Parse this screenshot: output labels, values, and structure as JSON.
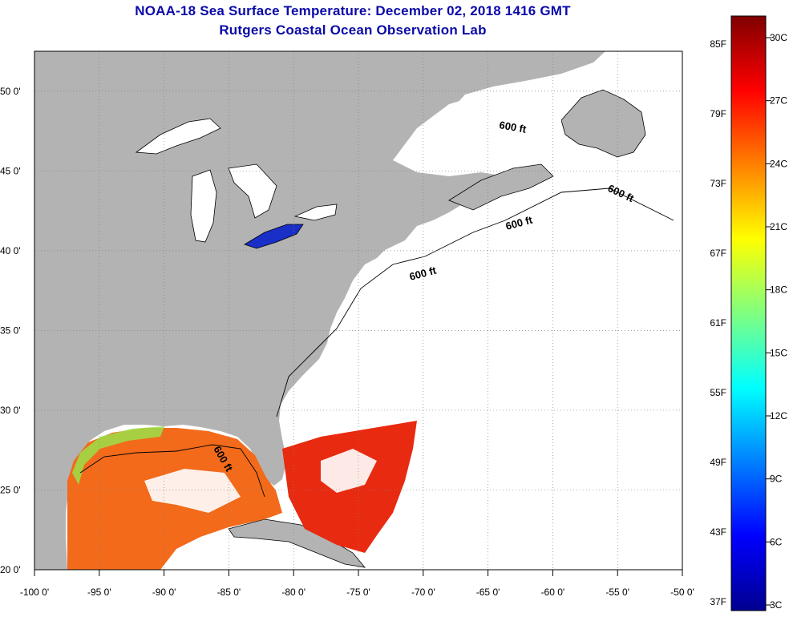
{
  "title": {
    "line1": "NOAA-18 Sea Surface Temperature:  December 02, 2018 1416 GMT",
    "line2": "Rutgers Coastal Ocean Observation Lab"
  },
  "map": {
    "lon_min": -100,
    "lon_max": -50,
    "lat_min": 20,
    "lat_max": 52.5,
    "lon_ticks": [
      {
        "value": -100,
        "label": "-100 0'"
      },
      {
        "value": -95,
        "label": "-95 0'"
      },
      {
        "value": -90,
        "label": "-90 0'"
      },
      {
        "value": -85,
        "label": "-85 0'"
      },
      {
        "value": -80,
        "label": "-80 0'"
      },
      {
        "value": -75,
        "label": "-75 0'"
      },
      {
        "value": -70,
        "label": "-70 0'"
      },
      {
        "value": -65,
        "label": "-65 0'"
      },
      {
        "value": -60,
        "label": "-60 0'"
      },
      {
        "value": -55,
        "label": "-55 0'"
      },
      {
        "value": -50,
        "label": "-50 0'"
      }
    ],
    "lat_ticks": [
      {
        "value": 50,
        "label": "50 0'"
      },
      {
        "value": 45,
        "label": "45 0'"
      },
      {
        "value": 40,
        "label": "40 0'"
      },
      {
        "value": 35,
        "label": "35 0'"
      },
      {
        "value": 30,
        "label": "30 0'"
      },
      {
        "value": 25,
        "label": "25 0'"
      },
      {
        "value": 20,
        "label": "20 0'"
      }
    ],
    "contour_labels": [
      "600 ft",
      "600 ft",
      "600 ft",
      "600 ft",
      "600 ft"
    ],
    "colors": {
      "land": "#b3b3b3",
      "ocean": "#ffffff",
      "grid": "#808080",
      "lake_erie": "#1a2fc8",
      "gulf_warm": "#f26a1a",
      "atlantic_warm": "#e82a10"
    }
  },
  "colorbar": {
    "fahrenheit_labels": [
      "85F",
      "79F",
      "73F",
      "67F",
      "61F",
      "55F",
      "49F",
      "43F",
      "37F"
    ],
    "celsius_labels": [
      "30C",
      "27C",
      "24C",
      "21C",
      "18C",
      "15C",
      "12C",
      "9C",
      "6C",
      "3C"
    ],
    "stops": [
      "#800000",
      "#ff0000",
      "#ff8000",
      "#ffff00",
      "#80ff80",
      "#00ffff",
      "#0080ff",
      "#0000ff",
      "#000090"
    ]
  }
}
